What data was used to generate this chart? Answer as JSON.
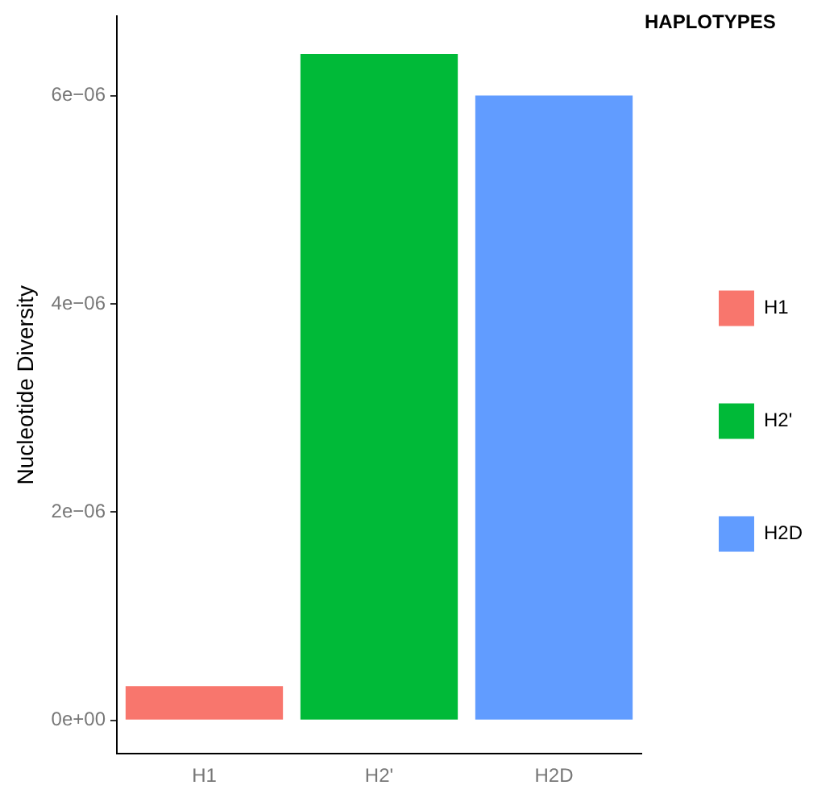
{
  "chart_data": {
    "type": "bar",
    "ylabel": "Nucleotide Diversity",
    "legend_title": "HAPLOTYPES",
    "legend": "right",
    "categories": [
      "H1",
      "H2'",
      "H2D"
    ],
    "series": [
      {
        "name": "H1",
        "color": "#f8766d",
        "values": [
          3.3e-07,
          null,
          null
        ]
      },
      {
        "name": "H2'",
        "color": "#00ba38",
        "values": [
          null,
          6.4e-06,
          null
        ]
      },
      {
        "name": "H2D",
        "color": "#619cff",
        "values": [
          null,
          null,
          6e-06
        ]
      }
    ],
    "ylim": [
      -3.2e-07,
      6.76e-06
    ],
    "yticks": [
      {
        "value": 0,
        "label": "0e+00"
      },
      {
        "value": 2e-06,
        "label": "2e−06"
      },
      {
        "value": 4e-06,
        "label": "4e−06"
      },
      {
        "value": 6e-06,
        "label": "6e−06"
      }
    ],
    "grid": false
  }
}
